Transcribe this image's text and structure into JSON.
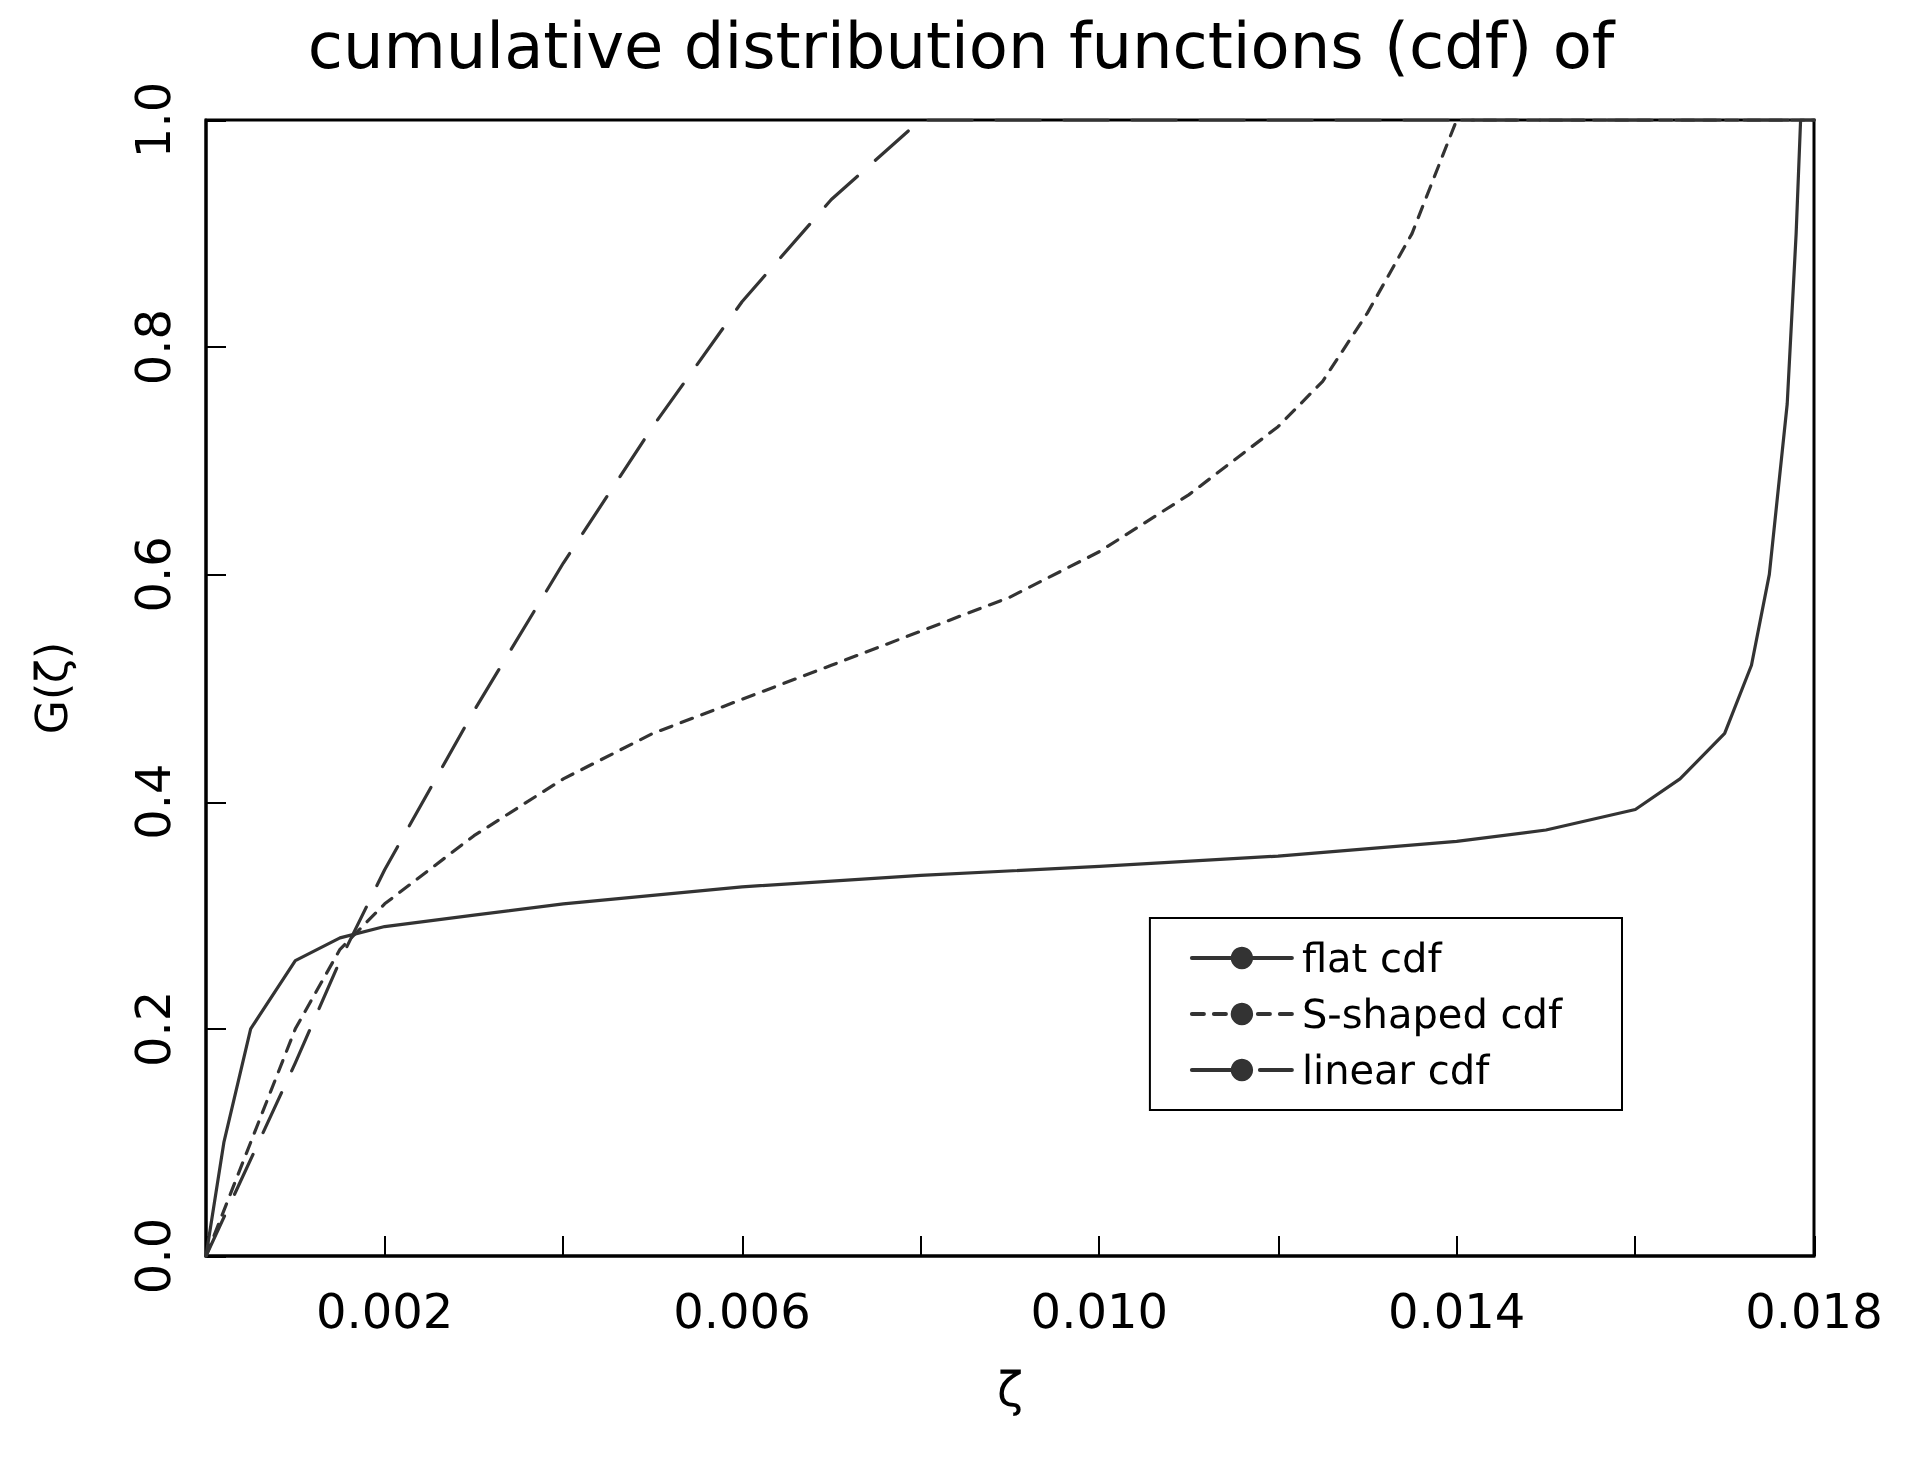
{
  "chart_data": {
    "type": "line",
    "title": "cumulative distribution functions (cdf) of",
    "xlabel": "ζ",
    "ylabel": "G(ζ)",
    "xlim": [
      0,
      0.018
    ],
    "xticks": [
      {
        "value": 0,
        "label": null
      },
      {
        "value": 0.002,
        "label": "0.002"
      },
      {
        "value": 0.004,
        "label": null
      },
      {
        "value": 0.006,
        "label": "0.006"
      },
      {
        "value": 0.008,
        "label": null
      },
      {
        "value": 0.01,
        "label": "0.010"
      },
      {
        "value": 0.012,
        "label": null
      },
      {
        "value": 0.014,
        "label": "0.014"
      },
      {
        "value": 0.016,
        "label": null
      },
      {
        "value": 0.018,
        "label": "0.018"
      }
    ],
    "ylim": [
      0,
      1
    ],
    "yticks": [
      {
        "value": 0,
        "label": "0.0"
      },
      {
        "value": 0.2,
        "label": "0.2"
      },
      {
        "value": 0.4,
        "label": "0.4"
      },
      {
        "value": 0.6,
        "label": "0.6"
      },
      {
        "value": 0.8,
        "label": "0.8"
      },
      {
        "value": 1,
        "label": "1.0"
      }
    ],
    "grid": false,
    "legend": "bottom right",
    "marker": "none",
    "series": [
      {
        "name": "flat cdf",
        "color": "#333333",
        "line_style": "solid",
        "x": [
          0,
          0.0002,
          0.0005,
          0.001,
          0.0015,
          0.002,
          0.003,
          0.004,
          0.006,
          0.008,
          0.01,
          0.012,
          0.014,
          0.015,
          0.016,
          0.0165,
          0.017,
          0.0173,
          0.0175,
          0.0177,
          0.0178,
          0.01785,
          0.018
        ],
        "values": [
          0,
          0.1,
          0.2,
          0.26,
          0.28,
          0.29,
          0.3,
          0.31,
          0.325,
          0.335,
          0.343,
          0.352,
          0.365,
          0.375,
          0.393,
          0.42,
          0.46,
          0.52,
          0.6,
          0.75,
          0.9,
          1,
          1
        ]
      },
      {
        "name": "S-shaped cdf",
        "color": "#333333",
        "line_style": "dashed",
        "x": [
          0,
          0.0005,
          0.001,
          0.0015,
          0.002,
          0.003,
          0.004,
          0.005,
          0.006,
          0.007,
          0.008,
          0.009,
          0.01,
          0.011,
          0.012,
          0.0125,
          0.013,
          0.0135,
          0.014,
          0.018
        ],
        "values": [
          0,
          0.1,
          0.2,
          0.27,
          0.31,
          0.37,
          0.42,
          0.46,
          0.49,
          0.52,
          0.55,
          0.58,
          0.62,
          0.67,
          0.73,
          0.77,
          0.83,
          0.9,
          1,
          1
        ]
      },
      {
        "name": "linear cdf",
        "color": "#333333",
        "line_style": "long-dashed",
        "x": [
          0,
          0.001,
          0.0015,
          0.002,
          0.003,
          0.004,
          0.005,
          0.006,
          0.007,
          0.008,
          0.018
        ],
        "values": [
          0,
          0.17,
          0.26,
          0.34,
          0.48,
          0.61,
          0.73,
          0.84,
          0.93,
          1,
          1
        ]
      }
    ]
  }
}
